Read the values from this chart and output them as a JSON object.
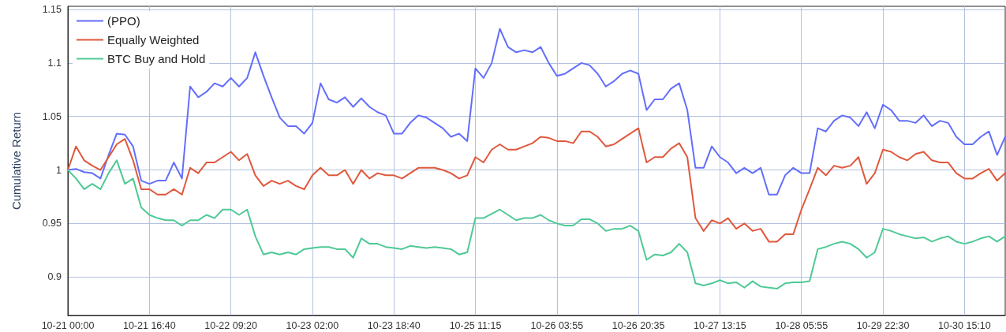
{
  "chart_data": {
    "type": "line",
    "ylabel": "Cumulative Return",
    "categories": [
      "10-21 00:00",
      null,
      null,
      null,
      null,
      null,
      null,
      null,
      null,
      null,
      "10-21 16:40",
      null,
      null,
      null,
      null,
      null,
      null,
      null,
      null,
      null,
      "10-22 09:20",
      null,
      null,
      null,
      null,
      null,
      null,
      null,
      null,
      null,
      "10-23 02:00",
      null,
      null,
      null,
      null,
      null,
      null,
      null,
      null,
      null,
      "10-23 18:40",
      null,
      null,
      null,
      null,
      null,
      null,
      null,
      null,
      null,
      "10-25 11:15",
      null,
      null,
      null,
      null,
      null,
      null,
      null,
      null,
      null,
      "10-26 03:55",
      null,
      null,
      null,
      null,
      null,
      null,
      null,
      null,
      null,
      "10-26 20:35",
      null,
      null,
      null,
      null,
      null,
      null,
      null,
      null,
      null,
      "10-27 13:15",
      null,
      null,
      null,
      null,
      null,
      null,
      null,
      null,
      null,
      "10-28 05:55",
      null,
      null,
      null,
      null,
      null,
      null,
      null,
      null,
      null,
      "10-29 22:30",
      null,
      null,
      null,
      null,
      null,
      null,
      null,
      null,
      null,
      "10-30 15:10",
      null,
      null,
      null,
      null,
      null
    ],
    "series": [
      {
        "name": "(PPO)",
        "color": "#636efa",
        "values": [
          1.0,
          1.001,
          0.998,
          0.997,
          0.992,
          1.014,
          1.034,
          1.033,
          1.022,
          0.99,
          0.987,
          0.99,
          0.99,
          1.007,
          0.992,
          1.078,
          1.068,
          1.073,
          1.081,
          1.078,
          1.086,
          1.078,
          1.086,
          1.11,
          1.088,
          1.068,
          1.049,
          1.041,
          1.041,
          1.034,
          1.044,
          1.081,
          1.066,
          1.063,
          1.068,
          1.059,
          1.067,
          1.059,
          1.054,
          1.051,
          1.034,
          1.034,
          1.044,
          1.051,
          1.049,
          1.044,
          1.039,
          1.031,
          1.034,
          1.027,
          1.095,
          1.086,
          1.1,
          1.132,
          1.115,
          1.11,
          1.112,
          1.11,
          1.115,
          1.1,
          1.088,
          1.09,
          1.095,
          1.1,
          1.098,
          1.09,
          1.078,
          1.083,
          1.09,
          1.093,
          1.09,
          1.056,
          1.066,
          1.066,
          1.076,
          1.081,
          1.056,
          1.002,
          1.002,
          1.022,
          1.012,
          1.007,
          0.997,
          1.002,
          0.997,
          1.002,
          0.977,
          0.977,
          0.995,
          1.002,
          0.997,
          0.997,
          1.039,
          1.036,
          1.046,
          1.051,
          1.049,
          1.041,
          1.054,
          1.039,
          1.061,
          1.056,
          1.046,
          1.046,
          1.044,
          1.051,
          1.041,
          1.046,
          1.044,
          1.031,
          1.024,
          1.024,
          1.031,
          1.036,
          1.014,
          1.031
        ]
      },
      {
        "name": "Equally Weighted",
        "color": "#e0583c",
        "values": [
          1.0,
          1.022,
          1.009,
          1.004,
          1.0,
          1.012,
          1.024,
          1.029,
          1.009,
          0.982,
          0.982,
          0.977,
          0.977,
          0.982,
          0.977,
          1.002,
          0.997,
          1.007,
          1.007,
          1.012,
          1.017,
          1.009,
          1.015,
          0.995,
          0.985,
          0.99,
          0.987,
          0.99,
          0.985,
          0.982,
          0.995,
          1.002,
          0.995,
          0.995,
          1.0,
          0.987,
          1.0,
          0.992,
          0.997,
          0.995,
          0.995,
          0.992,
          0.997,
          1.002,
          1.002,
          1.002,
          1.0,
          0.997,
          0.992,
          0.995,
          1.012,
          1.007,
          1.019,
          1.024,
          1.019,
          1.019,
          1.022,
          1.025,
          1.031,
          1.03,
          1.027,
          1.027,
          1.025,
          1.036,
          1.036,
          1.031,
          1.022,
          1.024,
          1.029,
          1.034,
          1.039,
          1.007,
          1.012,
          1.012,
          1.02,
          1.025,
          1.012,
          0.955,
          0.943,
          0.953,
          0.95,
          0.955,
          0.945,
          0.95,
          0.943,
          0.945,
          0.933,
          0.933,
          0.94,
          0.94,
          0.963,
          0.982,
          1.002,
          0.995,
          1.004,
          1.002,
          1.004,
          1.012,
          0.987,
          0.997,
          1.019,
          1.017,
          1.012,
          1.009,
          1.015,
          1.017,
          1.009,
          1.007,
          1.007,
          0.997,
          0.992,
          0.992,
          0.997,
          1.001,
          0.99,
          0.997
        ]
      },
      {
        "name": "BTC Buy and Hold",
        "color": "#4fc995",
        "values": [
          1.0,
          0.992,
          0.982,
          0.987,
          0.982,
          0.997,
          1.009,
          0.987,
          0.992,
          0.965,
          0.958,
          0.955,
          0.953,
          0.953,
          0.948,
          0.953,
          0.953,
          0.958,
          0.955,
          0.963,
          0.963,
          0.958,
          0.963,
          0.938,
          0.921,
          0.923,
          0.921,
          0.923,
          0.921,
          0.926,
          0.927,
          0.928,
          0.928,
          0.926,
          0.926,
          0.918,
          0.936,
          0.931,
          0.931,
          0.928,
          0.927,
          0.926,
          0.929,
          0.928,
          0.927,
          0.928,
          0.927,
          0.926,
          0.921,
          0.923,
          0.955,
          0.955,
          0.959,
          0.963,
          0.958,
          0.953,
          0.955,
          0.955,
          0.958,
          0.953,
          0.95,
          0.948,
          0.948,
          0.954,
          0.954,
          0.95,
          0.943,
          0.945,
          0.945,
          0.948,
          0.943,
          0.916,
          0.921,
          0.92,
          0.923,
          0.931,
          0.923,
          0.894,
          0.892,
          0.894,
          0.897,
          0.894,
          0.895,
          0.89,
          0.896,
          0.891,
          0.89,
          0.889,
          0.894,
          0.895,
          0.895,
          0.896,
          0.926,
          0.928,
          0.931,
          0.933,
          0.931,
          0.926,
          0.918,
          0.923,
          0.945,
          0.943,
          0.94,
          0.938,
          0.936,
          0.937,
          0.933,
          0.936,
          0.938,
          0.933,
          0.931,
          0.933,
          0.936,
          0.938,
          0.933,
          0.938
        ]
      }
    ],
    "ylim": [
      0.864,
      1.153
    ],
    "yticks": [
      0.9,
      0.95,
      1,
      1.05,
      1.1,
      1.15
    ],
    "grid": true,
    "legend": "top left",
    "marker": "none",
    "line_style": "solid"
  }
}
